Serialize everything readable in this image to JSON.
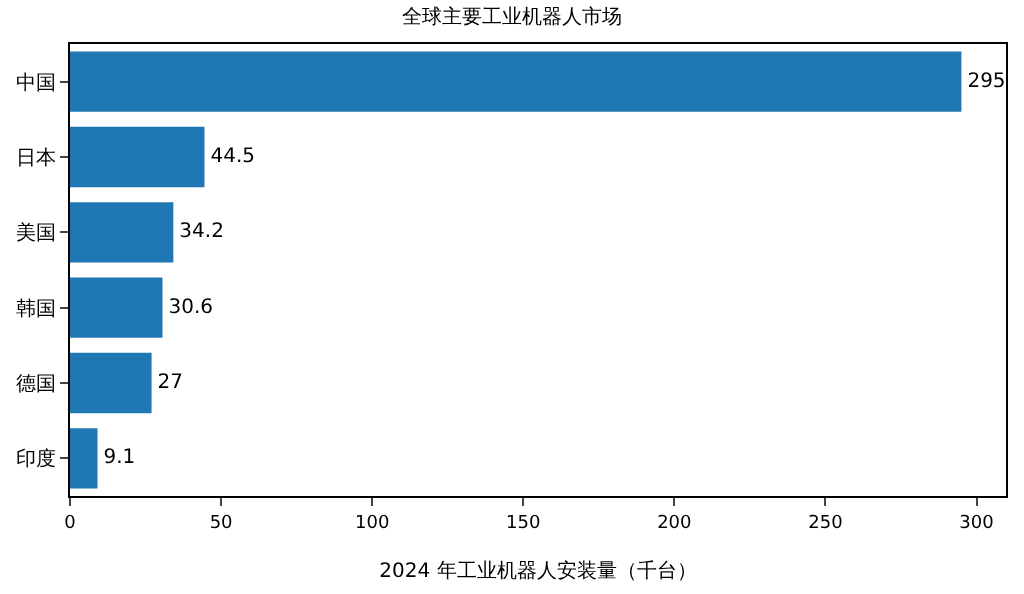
{
  "chart_data": {
    "type": "bar",
    "orientation": "horizontal",
    "title": "全球主要工业机器人市场",
    "xlabel": "2024 年工业机器人安装量（千台）",
    "categories": [
      "中国",
      "日本",
      "美国",
      "韩国",
      "德国",
      "印度"
    ],
    "values": [
      295,
      44.5,
      34.2,
      30.6,
      27,
      9.1
    ],
    "color": "#1f77b4",
    "data_labels": true,
    "xlim": [
      0,
      309.75
    ],
    "xticks": [
      0,
      50,
      100,
      150,
      200,
      250,
      300
    ]
  }
}
